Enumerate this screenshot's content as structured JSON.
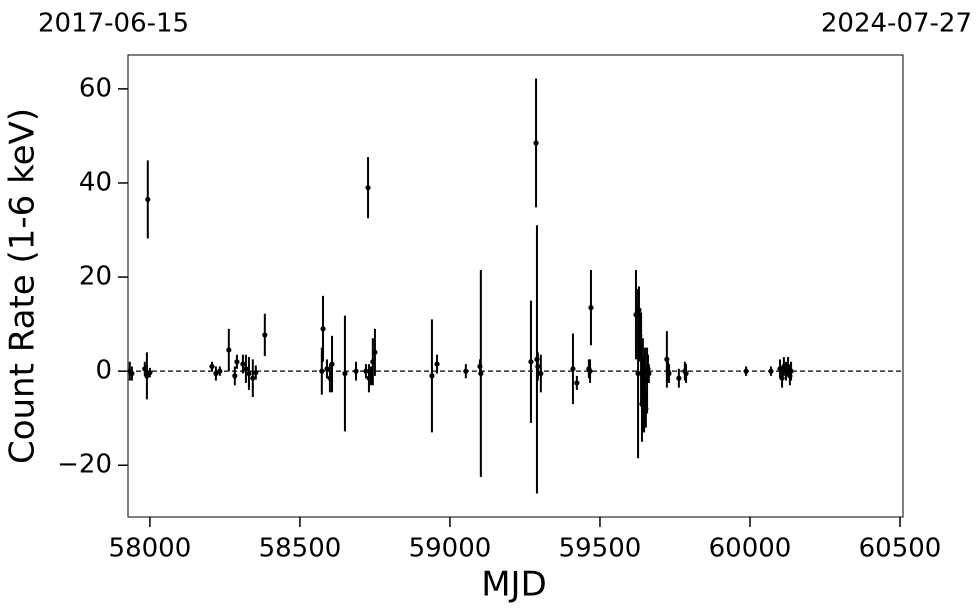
{
  "chart_data": {
    "type": "errorbar",
    "x_label": "MJD",
    "y_label": "Count Rate (1-6 keV)",
    "top_labels": [
      "2017-06-15",
      "2024-07-27"
    ],
    "xlim": [
      57927,
      60510
    ],
    "ylim": [
      -31,
      67.2
    ],
    "xticks": [
      58000,
      58500,
      59000,
      59500,
      60000,
      60500
    ],
    "yticks": [
      {
        "value": -20,
        "label": "−20"
      },
      0,
      20,
      40,
      60
    ],
    "reference_line": 0,
    "series": [
      {
        "color": "#000000",
        "x": [
          57933,
          57940,
          57983,
          57990,
          57993,
          58000,
          58207,
          58220,
          58233,
          58263,
          58283,
          58290,
          58310,
          58320,
          58330,
          58343,
          58353,
          58383,
          58573,
          58577,
          58590,
          58600,
          58607,
          58650,
          58687,
          58720,
          58727,
          58730,
          58737,
          58743,
          58750,
          58940,
          58957,
          59053,
          59100,
          59103,
          59270,
          59287,
          59290,
          59293,
          59303,
          59410,
          59423,
          59463,
          59467,
          59470,
          59620,
          59627,
          59630,
          59633,
          59637,
          59640,
          59643,
          59647,
          59650,
          59653,
          59657,
          59660,
          59663,
          59723,
          59727,
          59730,
          59763,
          59783,
          59787,
          59987,
          60070,
          60100,
          60107,
          60113,
          60120,
          60127,
          60133,
          60137
        ],
        "values": [
          0,
          -0.5,
          0.5,
          -1,
          36.5,
          -0.3,
          1,
          -0.5,
          0,
          4.5,
          -1,
          2,
          1.5,
          0.5,
          -0.5,
          -1.5,
          -0.3,
          7.7,
          0,
          9,
          0.5,
          -1.5,
          1.5,
          -0.5,
          0,
          0,
          39,
          -1.5,
          -1,
          2,
          4,
          -1,
          1.5,
          0,
          1,
          -0.5,
          2,
          48.5,
          2.5,
          1,
          -0.5,
          0.5,
          -2.5,
          0.5,
          0,
          13.5,
          12,
          -0.5,
          13,
          7.5,
          2.5,
          -7,
          -3,
          -5,
          0,
          -8,
          -2,
          0.5,
          -0.5,
          2.5,
          0,
          -0.5,
          -1.5,
          0,
          -0.5,
          0,
          0,
          0.5,
          -1.5,
          1,
          0,
          1,
          -1,
          0
        ],
        "errors": [
          2,
          1.5,
          1.5,
          5,
          8.3,
          1,
          1,
          1.5,
          1,
          4.5,
          2,
          1.5,
          2,
          3,
          3.5,
          4,
          1.5,
          4.5,
          5,
          7,
          2,
          3,
          6,
          12.3,
          2,
          1.5,
          6.5,
          3,
          2,
          5,
          5,
          12,
          2,
          1.5,
          1.5,
          22,
          13,
          13.7,
          28.5,
          3,
          4,
          7.5,
          1.5,
          2,
          2.5,
          8,
          9.5,
          18,
          5,
          5,
          10,
          8,
          10,
          8,
          5,
          4,
          7,
          3,
          2,
          6,
          2,
          2,
          2,
          2,
          2,
          1,
          1,
          2,
          2,
          2,
          2,
          2,
          2,
          2
        ]
      }
    ]
  }
}
